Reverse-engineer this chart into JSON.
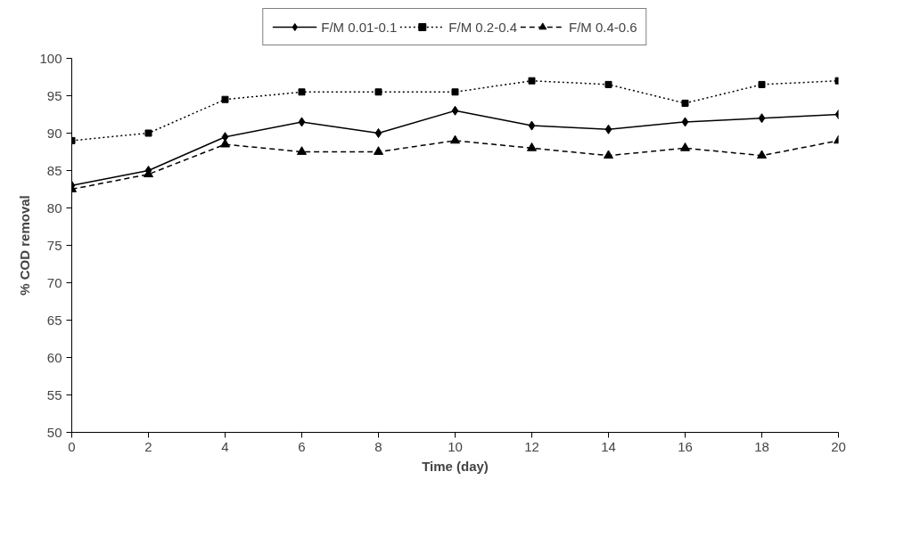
{
  "chart_data": {
    "type": "line",
    "xlabel": "Time (day)",
    "ylabel": "% COD removal",
    "x": [
      0,
      2,
      4,
      6,
      8,
      10,
      12,
      14,
      16,
      18,
      20
    ],
    "xlim": [
      0,
      20
    ],
    "xticks": [
      0,
      2,
      4,
      6,
      8,
      10,
      12,
      14,
      16,
      18,
      20
    ],
    "ylim": [
      50,
      100
    ],
    "yticks": [
      50,
      55,
      60,
      65,
      70,
      75,
      80,
      85,
      90,
      95,
      100
    ],
    "grid": false,
    "legend": "top",
    "series": [
      {
        "name": "F/M 0.01-0.1",
        "color": "#000000",
        "marker": "diamond",
        "line_style": "solid",
        "values": [
          83,
          85,
          89.5,
          91.5,
          90,
          93,
          91,
          90.5,
          91.5,
          92,
          92.5
        ]
      },
      {
        "name": "F/M 0.2-0.4",
        "color": "#000000",
        "marker": "square",
        "line_style": "dotted",
        "values": [
          89,
          90,
          94.5,
          95.5,
          95.5,
          95.5,
          97,
          96.5,
          94,
          96.5,
          97
        ]
      },
      {
        "name": "F/M 0.4-0.6",
        "color": "#000000",
        "marker": "triangle",
        "line_style": "dashed",
        "values": [
          82.5,
          84.5,
          88.5,
          87.5,
          87.5,
          89,
          88,
          87,
          88,
          87,
          89
        ]
      }
    ]
  }
}
